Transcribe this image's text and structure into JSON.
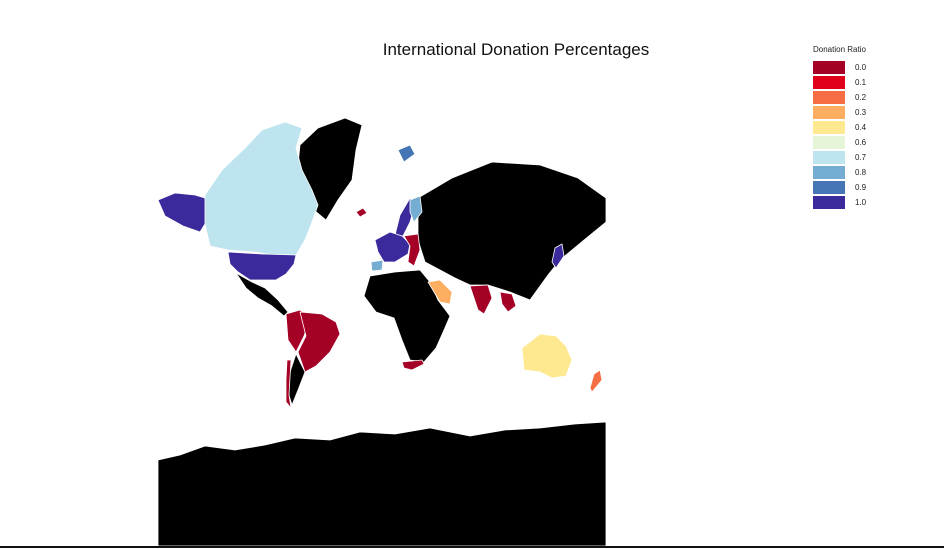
{
  "title": "International Donation Percentages",
  "legend": {
    "title": "Donation Ratio",
    "items": [
      {
        "label": "0.0",
        "color": "#a50026"
      },
      {
        "label": "0.1",
        "color": "#e0001a"
      },
      {
        "label": "0.2",
        "color": "#f46d43"
      },
      {
        "label": "0.3",
        "color": "#fdae61"
      },
      {
        "label": "0.4",
        "color": "#fee890"
      },
      {
        "label": "0.6",
        "color": "#e6f5d8"
      },
      {
        "label": "0.7",
        "color": "#bde4ef"
      },
      {
        "label": "0.8",
        "color": "#74add1"
      },
      {
        "label": "0.9",
        "color": "#4575b4"
      },
      {
        "label": "1.0",
        "color": "#3a2a9c"
      }
    ]
  },
  "colors": {
    "no_data": "#000000",
    "border": "#ffffff",
    "background": "#ffffff"
  },
  "regions": [
    {
      "name": "canada",
      "color": "#bde4ef"
    },
    {
      "name": "alaska",
      "color": "#3a2a9c"
    },
    {
      "name": "united-states",
      "color": "#3a2a9c"
    },
    {
      "name": "greenland",
      "color": "#000000"
    },
    {
      "name": "mexico-central-america",
      "color": "#000000"
    },
    {
      "name": "colombia-venezuela-peru",
      "color": "#a50026"
    },
    {
      "name": "brazil",
      "color": "#a50026"
    },
    {
      "name": "south-america-south",
      "color": "#000000"
    },
    {
      "name": "chile",
      "color": "#a50026"
    },
    {
      "name": "iceland",
      "color": "#a50026"
    },
    {
      "name": "russia-asia",
      "color": "#000000"
    },
    {
      "name": "scandinavia",
      "color": "#3a2a9c"
    },
    {
      "name": "finland",
      "color": "#74add1"
    },
    {
      "name": "svalbard",
      "color": "#4575b4"
    },
    {
      "name": "western-europe",
      "color": "#3a2a9c"
    },
    {
      "name": "eastern-europe",
      "color": "#a50026"
    },
    {
      "name": "spain",
      "color": "#74add1"
    },
    {
      "name": "africa",
      "color": "#000000"
    },
    {
      "name": "south-africa",
      "color": "#a50026"
    },
    {
      "name": "saudi-arabia",
      "color": "#fdae61"
    },
    {
      "name": "india",
      "color": "#a50026"
    },
    {
      "name": "southeast-asia",
      "color": "#a50026"
    },
    {
      "name": "japan",
      "color": "#3a2a9c"
    },
    {
      "name": "australia",
      "color": "#fee890"
    },
    {
      "name": "new-zealand",
      "color": "#f46d43"
    },
    {
      "name": "antarctica",
      "color": "#000000"
    }
  ]
}
